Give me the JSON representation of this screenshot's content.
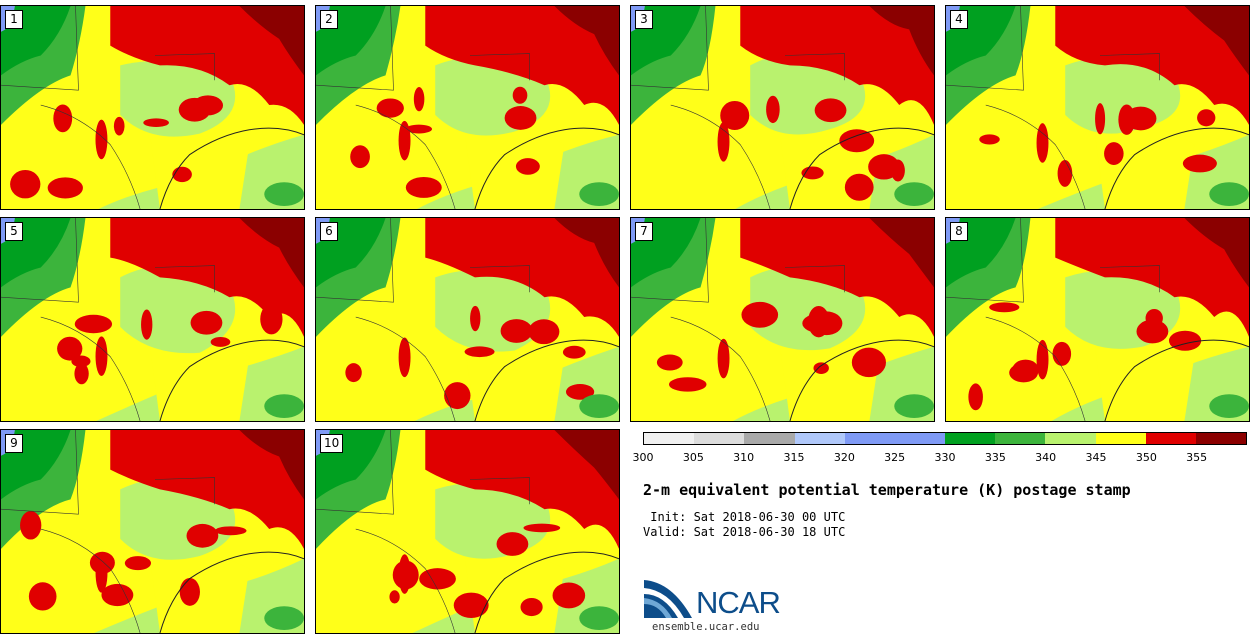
{
  "title": "2-m equivalent potential temperature (K) postage stamp",
  "init": " Init: Sat 2018-06-30 00 UTC",
  "valid": "Valid: Sat 2018-06-30 18 UTC",
  "logo_text": "NCAR",
  "logo_url": "ensemble.ucar.edu",
  "panels": [
    {
      "label": "1"
    },
    {
      "label": "2"
    },
    {
      "label": "3"
    },
    {
      "label": "4"
    },
    {
      "label": "5"
    },
    {
      "label": "6"
    },
    {
      "label": "7"
    },
    {
      "label": "8"
    },
    {
      "label": "9"
    },
    {
      "label": "10"
    }
  ],
  "colorbar": {
    "colors": [
      "#f0f0f0",
      "#dcdcdc",
      "#a9a9a9",
      "#b0c8fa",
      "#7f9af5",
      "#7f9af5",
      "#00a020",
      "#3cb43c",
      "#b9f26e",
      "#ffff19",
      "#e00000",
      "#8b0000"
    ],
    "ticks": [
      "300",
      "305",
      "310",
      "315",
      "320",
      "325",
      "330",
      "335",
      "340",
      "345",
      "350",
      "355"
    ]
  },
  "colors": {
    "lake": "#7f9af5",
    "dark_green": "#00a020",
    "mid_green": "#3cb43c",
    "light_green": "#b9f26e",
    "yellow": "#ffff19",
    "red": "#e00000",
    "dark_red": "#8b0000"
  }
}
